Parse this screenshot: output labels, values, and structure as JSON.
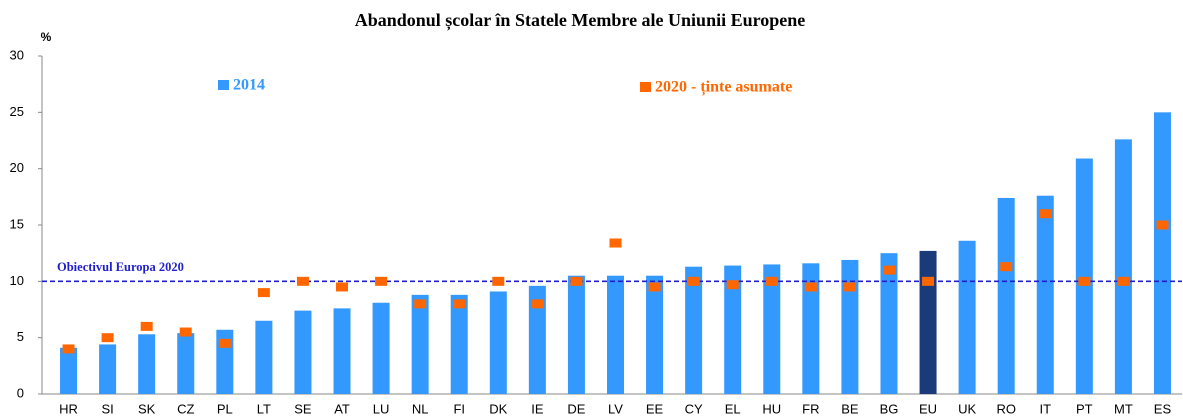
{
  "chart_data": {
    "type": "bar",
    "title": "Abandonul școlar în Statele Membre ale Uniunii Europene",
    "y_label": "%",
    "categories": [
      "HR",
      "SI",
      "SK",
      "CZ",
      "PL",
      "LT",
      "SE",
      "AT",
      "LU",
      "NL",
      "FI",
      "DK",
      "IE",
      "DE",
      "LV",
      "EE",
      "CY",
      "EL",
      "HU",
      "FR",
      "BE",
      "BG",
      "EU",
      "UK",
      "RO",
      "IT",
      "PT",
      "MT",
      "ES"
    ],
    "series": [
      {
        "name": "2014",
        "type": "bar",
        "color": "#3399ff",
        "colors": [
          "#3399ff",
          "#3399ff",
          "#3399ff",
          "#3399ff",
          "#3399ff",
          "#3399ff",
          "#3399ff",
          "#3399ff",
          "#3399ff",
          "#3399ff",
          "#3399ff",
          "#3399ff",
          "#3399ff",
          "#3399ff",
          "#3399ff",
          "#3399ff",
          "#3399ff",
          "#3399ff",
          "#3399ff",
          "#3399ff",
          "#3399ff",
          "#3399ff",
          "#1a3a7a",
          "#3399ff",
          "#3399ff",
          "#3399ff",
          "#3399ff",
          "#3399ff",
          "#3399ff"
        ],
        "values": [
          4.1,
          4.4,
          5.3,
          5.4,
          5.7,
          6.5,
          7.4,
          7.6,
          8.1,
          8.8,
          8.8,
          9.1,
          9.6,
          10.5,
          10.5,
          10.5,
          11.3,
          11.4,
          11.5,
          11.6,
          11.9,
          12.5,
          12.7,
          13.6,
          17.4,
          17.6,
          20.9,
          22.6,
          25.0
        ]
      },
      {
        "name": "2020 - ținte asumate",
        "type": "marker",
        "color": "#ff6600",
        "values": [
          4,
          5,
          6,
          5.5,
          4.5,
          9,
          10,
          9.5,
          10,
          8,
          8,
          10,
          8,
          10,
          13.4,
          9.5,
          10,
          9.7,
          10,
          9.5,
          9.5,
          11,
          10,
          null,
          11.3,
          16,
          10,
          10,
          15
        ]
      }
    ],
    "reference_line": {
      "value": 10,
      "label": "Obiectivul Europa 2020",
      "color": "#1f1fcf"
    },
    "ylim": [
      0,
      30
    ],
    "yticks": [
      0,
      5,
      10,
      15,
      20,
      25,
      30
    ],
    "grid": false
  }
}
